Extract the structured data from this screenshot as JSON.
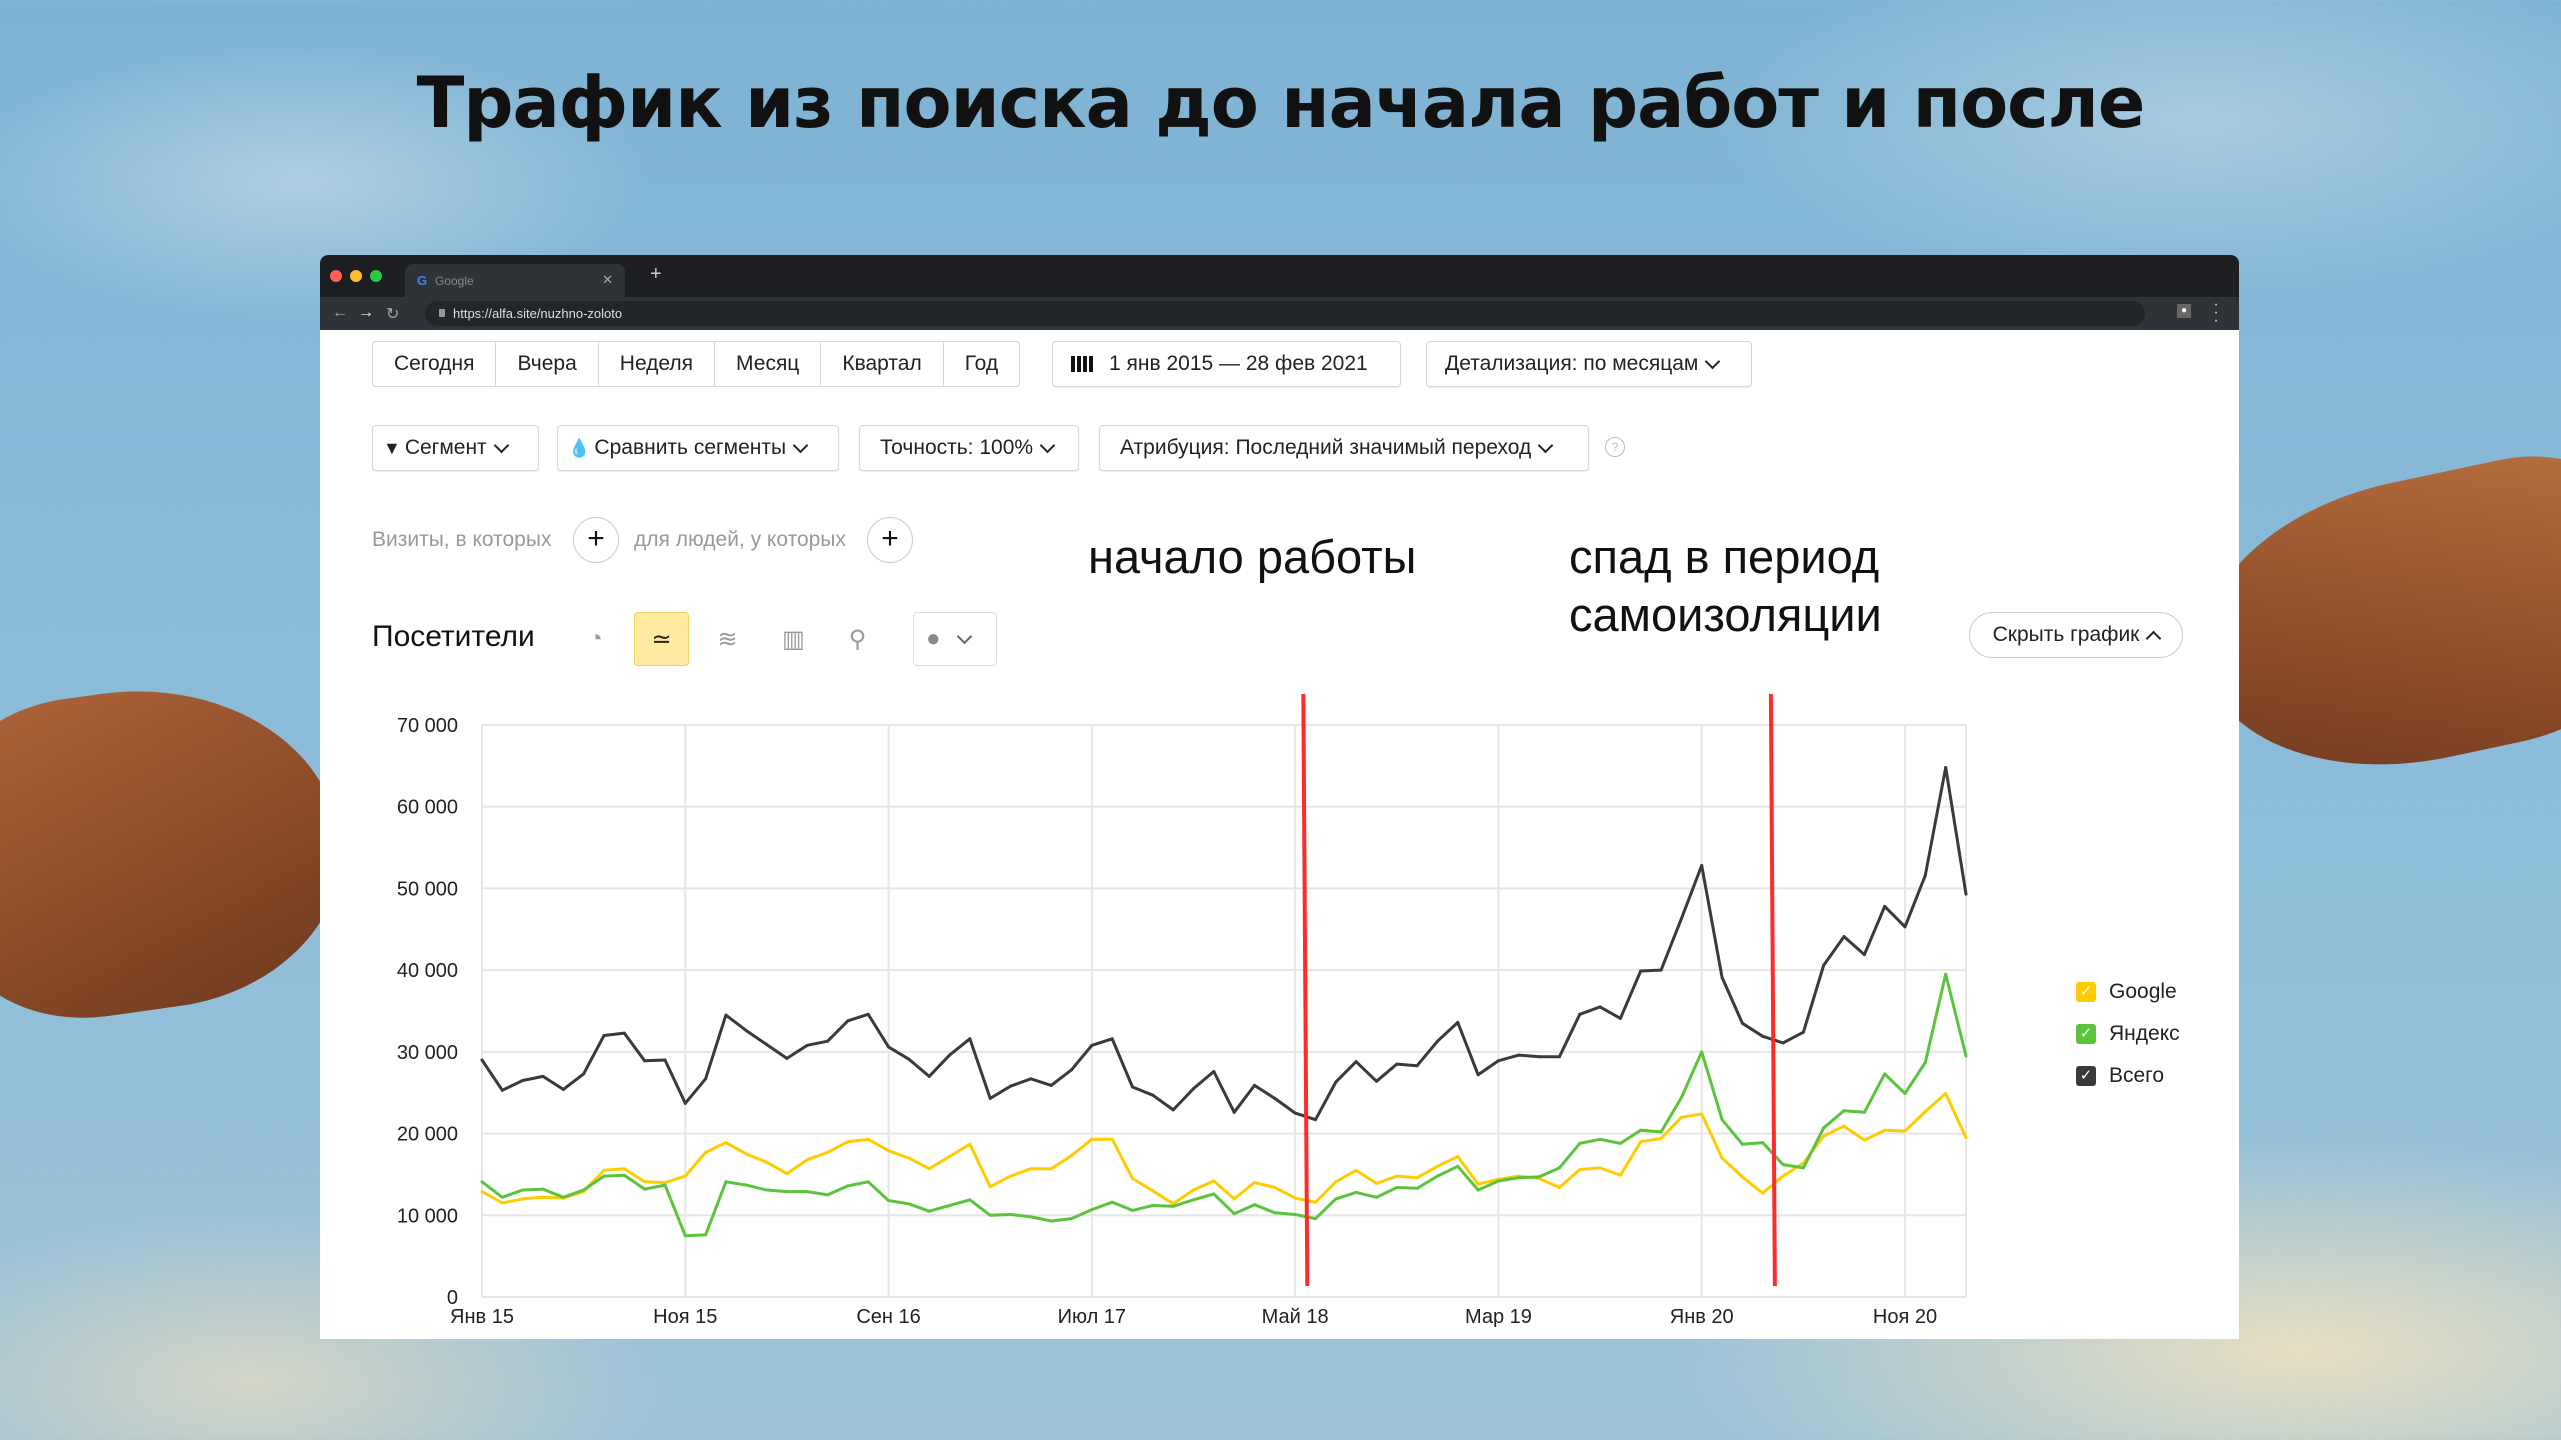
{
  "page_title": "Трафик из поиска до начала работ и после",
  "browser": {
    "tab_title": "Google",
    "url": "https://alfa.site/nuzhno-zoloto"
  },
  "toolbar": {
    "periods": [
      "Сегодня",
      "Вчера",
      "Неделя",
      "Месяц",
      "Квартал",
      "Год"
    ],
    "date_range": "1 янв 2015 — 28 фев 2021",
    "detail": "Детализация: по месяцам",
    "segment": "Сегмент",
    "compare": "Сравнить сегменты",
    "accuracy": "Точность: 100%",
    "attribution": "Атрибуция: Последний значимый переход",
    "help": "?"
  },
  "filters": {
    "visits_label": "Визиты, в которых",
    "people_label": "для людей, у которых",
    "plus": "+"
  },
  "annotations": {
    "start": "начало работы",
    "drop_line1": "спад в период",
    "drop_line2": "самоизоляции"
  },
  "chart_header": {
    "metric": "Посетители",
    "icons": [
      "pie-chart-icon",
      "line-chart-icon",
      "area-chart-icon",
      "bar-chart-icon",
      "map-icon",
      "comment-icon"
    ],
    "active_view": "line-chart-icon",
    "hide_chart": "Скрыть график"
  },
  "chart_data": {
    "type": "line",
    "title": "",
    "xlabel": "",
    "ylabel": "",
    "ylim": [
      0,
      70000
    ],
    "yticks": [
      0,
      10000,
      20000,
      30000,
      40000,
      50000,
      60000,
      70000
    ],
    "ytick_labels": [
      "0",
      "10 000",
      "20 000",
      "30 000",
      "40 000",
      "50 000",
      "60 000",
      "70 000"
    ],
    "xtick_labels": [
      "Янв 15",
      "Ноя 15",
      "Сен 16",
      "Июл 17",
      "Май 18",
      "Мар 19",
      "Янв 20",
      "Ноя 20"
    ],
    "grid": true,
    "legend": "right",
    "x": [
      "Янв 15",
      "Фев 15",
      "Мар 15",
      "Апр 15",
      "Май 15",
      "Июн 15",
      "Июл 15",
      "Авг 15",
      "Сен 15",
      "Окт 15",
      "Ноя 15",
      "Дек 15",
      "Янв 16",
      "Фев 16",
      "Мар 16",
      "Апр 16",
      "Май 16",
      "Июн 16",
      "Июл 16",
      "Авг 16",
      "Сен 16",
      "Окт 16",
      "Ноя 16",
      "Дек 16",
      "Янв 17",
      "Фев 17",
      "Мар 17",
      "Апр 17",
      "Май 17",
      "Июн 17",
      "Июл 17",
      "Авг 17",
      "Сен 17",
      "Окт 17",
      "Ноя 17",
      "Дек 17",
      "Янв 18",
      "Фев 18",
      "Мар 18",
      "Апр 18",
      "Май 18",
      "Июн 18",
      "Июл 18",
      "Авг 18",
      "Сен 18",
      "Окт 18",
      "Ноя 18",
      "Дек 18",
      "Янв 19",
      "Фев 19",
      "Мар 19",
      "Апр 19",
      "Май 19",
      "Июн 19",
      "Июл 19",
      "Авг 19",
      "Сен 19",
      "Окт 19",
      "Ноя 19",
      "Дек 19",
      "Янв 20",
      "Фев 20",
      "Мар 20",
      "Апр 20",
      "Май 20",
      "Июн 20",
      "Июл 20",
      "Авг 20",
      "Сен 20",
      "Окт 20",
      "Ноя 20",
      "Дек 20",
      "Янв 21",
      "Фев 21"
    ],
    "series": [
      {
        "name": "Google",
        "color": "#ffcc00",
        "values": [
          12900,
          11500,
          12000,
          12200,
          12100,
          12900,
          15500,
          15700,
          14100,
          14000,
          14800,
          17700,
          18900,
          17500,
          16500,
          15100,
          16800,
          17700,
          19000,
          19300,
          17900,
          17000,
          15700,
          17200,
          18700,
          13500,
          14800,
          15700,
          15700,
          17300,
          19300,
          19300,
          14500,
          13000,
          11400,
          13100,
          14200,
          12000,
          14000,
          13400,
          12100,
          11600,
          14100,
          15500,
          13900,
          14800,
          14600,
          16000,
          17200,
          13800,
          14400,
          14800,
          14500,
          13400,
          15600,
          15800,
          14900,
          19000,
          19400,
          22000,
          22400,
          17000,
          14700,
          12700,
          14800,
          16400,
          19700,
          20900,
          19200,
          20400,
          20300,
          22700,
          24900,
          19500
        ]
      },
      {
        "name": "Яндекс",
        "color": "#5bc43c",
        "values": [
          14100,
          12200,
          13100,
          13200,
          12200,
          13100,
          14800,
          14900,
          13200,
          13700,
          7500,
          7600,
          14100,
          13700,
          13100,
          12900,
          12900,
          12500,
          13600,
          14100,
          11800,
          11400,
          10500,
          11200,
          11900,
          10000,
          10100,
          9800,
          9300,
          9600,
          10700,
          11600,
          10600,
          11200,
          11100,
          11900,
          12600,
          10200,
          11300,
          10300,
          10100,
          9600,
          12000,
          12800,
          12200,
          13400,
          13300,
          14800,
          16000,
          13100,
          14200,
          14600,
          14700,
          15800,
          18800,
          19300,
          18800,
          20400,
          20200,
          24400,
          30000,
          21700,
          18700,
          18900,
          16200,
          15800,
          20700,
          22800,
          22600,
          27300,
          24900,
          28700,
          39500,
          29500
        ]
      },
      {
        "name": "Всего",
        "color": "#3a3a3a",
        "values": [
          29000,
          25300,
          26500,
          27000,
          25400,
          27300,
          32000,
          32300,
          28900,
          29000,
          23700,
          26700,
          34500,
          32600,
          30900,
          29200,
          30800,
          31300,
          33800,
          34600,
          30600,
          29100,
          27000,
          29600,
          31600,
          24300,
          25800,
          26700,
          25900,
          27800,
          30800,
          31600,
          25700,
          24700,
          22900,
          25500,
          27600,
          22600,
          25900,
          24300,
          22500,
          21700,
          26300,
          28800,
          26400,
          28500,
          28300,
          31300,
          33600,
          27200,
          28900,
          29600,
          29400,
          29400,
          34600,
          35500,
          34100,
          39900,
          40000,
          46300,
          52800,
          39100,
          33500,
          31900,
          31100,
          32400,
          40600,
          44100,
          41900,
          47800,
          45300,
          51600,
          64800,
          49300
        ]
      }
    ],
    "marker_lines": [
      {
        "x": "Май 18",
        "color": "#ff2a2a"
      },
      {
        "x": "Апр 20",
        "color": "#ff2a2a"
      }
    ]
  }
}
